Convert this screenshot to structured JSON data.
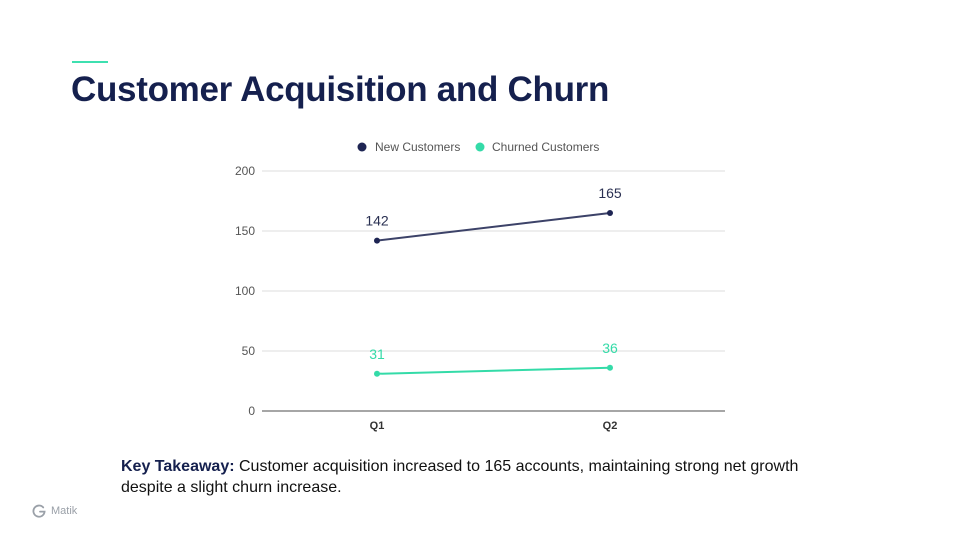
{
  "slide": {
    "title": "Customer Acquisition and Churn",
    "accent_color": "#3ee0b0",
    "title_color": "#15204e"
  },
  "takeaway": {
    "label": "Key Takeaway:",
    "text": " Customer acquisition increased to 165 accounts, maintaining strong net growth despite a slight churn increase."
  },
  "brand": {
    "name": "Matik",
    "icon": "matik-logo-icon"
  },
  "chart_data": {
    "type": "line",
    "title": "",
    "xlabel": "",
    "ylabel": "",
    "categories": [
      "Q1",
      "Q2"
    ],
    "ylim": [
      0,
      200
    ],
    "yticks": [
      0,
      50,
      100,
      150,
      200
    ],
    "grid": true,
    "legend": "top-center",
    "series": [
      {
        "name": "New Customers",
        "values": [
          142,
          165
        ],
        "color": "#1e2553"
      },
      {
        "name": "Churned Customers",
        "values": [
          31,
          36
        ],
        "color": "#34dba8"
      }
    ]
  }
}
